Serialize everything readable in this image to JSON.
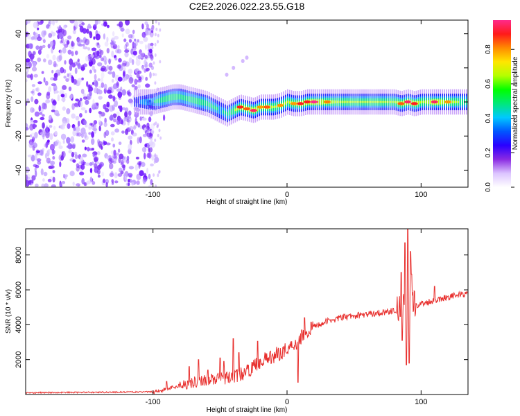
{
  "title": "C2E2.2026.022.23.55.G18",
  "chart_data": [
    {
      "type": "heatmap",
      "name": "spectrogram",
      "xlabel": "Height of straight line (km)",
      "ylabel": "Frequency (Hz)",
      "xlim": [
        -195,
        135
      ],
      "ylim": [
        -50,
        48
      ],
      "xticks": [
        -100,
        0,
        100
      ],
      "xtick_labels": [
        "-100",
        "0",
        "100"
      ],
      "yticks": [
        40,
        20,
        0,
        -20,
        -40
      ],
      "ytick_labels": [
        "40",
        "20",
        "0",
        "-20",
        "-40"
      ],
      "colorbar": {
        "label": "Normalized spectral amplitude",
        "range": [
          0,
          0.97
        ],
        "ticks": [
          0.0,
          0.2,
          0.4,
          0.6,
          0.8
        ],
        "tick_labels": [
          "0.0",
          "0.2",
          "0.4",
          "0.6",
          "0.8"
        ],
        "colors": [
          "#ffffff",
          "#dcc4ff",
          "#8a2be2",
          "#2a00ff",
          "#0055ff",
          "#00c8ff",
          "#00e87a",
          "#00ff00",
          "#b4ff00",
          "#ffe600",
          "#ff8c00",
          "#ff1a1a",
          "#ff2a8a"
        ]
      },
      "ridge": {
        "height_km": [
          -114,
          -105,
          -100,
          -95,
          -90,
          -85,
          -80,
          -75,
          -70,
          -65,
          -60,
          -55,
          -50,
          -45,
          -40,
          -35,
          -30,
          -25,
          -20,
          -15,
          -10,
          -5,
          0,
          5,
          10,
          15,
          20,
          30,
          40,
          50,
          60,
          70,
          80,
          85,
          90,
          95,
          100,
          110,
          120,
          135
        ],
        "frequency_hz": [
          0,
          0,
          0,
          1,
          2,
          3,
          3,
          2,
          1,
          0,
          -1,
          -3,
          -5,
          -7,
          -5,
          -3,
          -4,
          -5,
          -3,
          -3,
          -3,
          -2,
          0,
          -1,
          -1,
          0,
          0,
          0,
          0,
          0,
          0,
          0,
          0,
          -1,
          0,
          -1,
          0,
          0,
          0,
          0
        ],
        "amplitude": [
          0.25,
          0.35,
          0.4,
          0.5,
          0.55,
          0.55,
          0.5,
          0.5,
          0.55,
          0.55,
          0.5,
          0.45,
          0.4,
          0.45,
          0.6,
          0.8,
          0.75,
          0.85,
          0.7,
          0.75,
          0.6,
          0.7,
          0.65,
          0.7,
          0.8,
          0.8,
          0.9,
          0.72,
          0.62,
          0.6,
          0.6,
          0.6,
          0.6,
          0.75,
          0.85,
          0.8,
          0.6,
          0.85,
          0.7,
          0.5
        ]
      },
      "noise_region_km": [
        -195,
        -100
      ]
    },
    {
      "type": "line",
      "name": "snr",
      "xlabel": "Height of straight line (km)",
      "ylabel": "SNR (10 * v/v)",
      "xlim": [
        -195,
        135
      ],
      "ylim": [
        0,
        9500
      ],
      "xticks": [
        -100,
        0,
        100
      ],
      "xtick_labels": [
        "-100",
        "0",
        "100"
      ],
      "yticks": [
        2000,
        4000,
        6000,
        8000
      ],
      "ytick_labels": [
        "2000",
        "4000",
        "6000",
        "8000"
      ],
      "color": "#e8302e",
      "trend": {
        "x": [
          -195,
          -100,
          -95,
          -90,
          -80,
          -70,
          -60,
          -50,
          -40,
          -30,
          -20,
          -10,
          0,
          5,
          10,
          15,
          20,
          30,
          40,
          50,
          60,
          70,
          80,
          85,
          90,
          95,
          100,
          110,
          120,
          135
        ],
        "y": [
          100,
          150,
          220,
          300,
          520,
          700,
          850,
          900,
          1000,
          1300,
          1900,
          2200,
          2600,
          2900,
          3200,
          3600,
          3900,
          4200,
          4400,
          4500,
          4600,
          4700,
          4800,
          4900,
          4950,
          5100,
          5200,
          5400,
          5600,
          5800
        ]
      },
      "spikes": [
        {
          "x": -90,
          "y": 750
        },
        {
          "x": -73,
          "y": 1600
        },
        {
          "x": -66,
          "y": 2000
        },
        {
          "x": -59,
          "y": 1400
        },
        {
          "x": -50,
          "y": 2100
        },
        {
          "x": -47,
          "y": 1900
        },
        {
          "x": -40,
          "y": 3200
        },
        {
          "x": -36,
          "y": 2400
        },
        {
          "x": -22,
          "y": 3050
        },
        {
          "x": 7,
          "y": 2600
        },
        {
          "x": 11,
          "y": 3700
        },
        {
          "x": 13,
          "y": 4400
        },
        {
          "x": 17,
          "y": 3500
        },
        {
          "x": 85,
          "y": 7000
        },
        {
          "x": 88,
          "y": 8700
        },
        {
          "x": 90,
          "y": 9500
        },
        {
          "x": 92,
          "y": 8200
        },
        {
          "x": 93,
          "y": 6900
        },
        {
          "x": 110,
          "y": 6200
        }
      ],
      "dips": [
        {
          "x": 8,
          "y": 700
        },
        {
          "x": 89,
          "y": 1700
        },
        {
          "x": 91,
          "y": 1800
        },
        {
          "x": 86,
          "y": 3100
        }
      ]
    }
  ]
}
